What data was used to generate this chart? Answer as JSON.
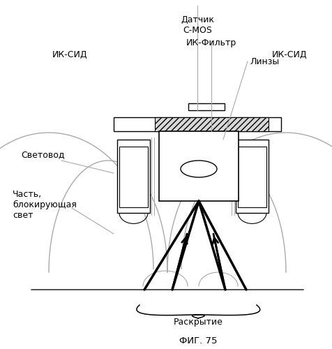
{
  "title": "ФИГ. 75",
  "label_datchik": "Датчик\nC-MOS",
  "label_ik_sid_left": "ИК-СИД",
  "label_ik_sid_right": "ИК-СИД",
  "label_ik_filtr": "ИК-Фильтр",
  "label_linzy": "Линзы",
  "label_svetovod": "Световод",
  "label_chast": "Часть,\nблокирующая\nсвет",
  "label_raskrytie": "Раскрытие",
  "bg_color": "#ffffff",
  "line_color": "#000000",
  "gray_color": "#aaaaaa",
  "light_gray": "#cccccc",
  "hatch_color": "#888888"
}
